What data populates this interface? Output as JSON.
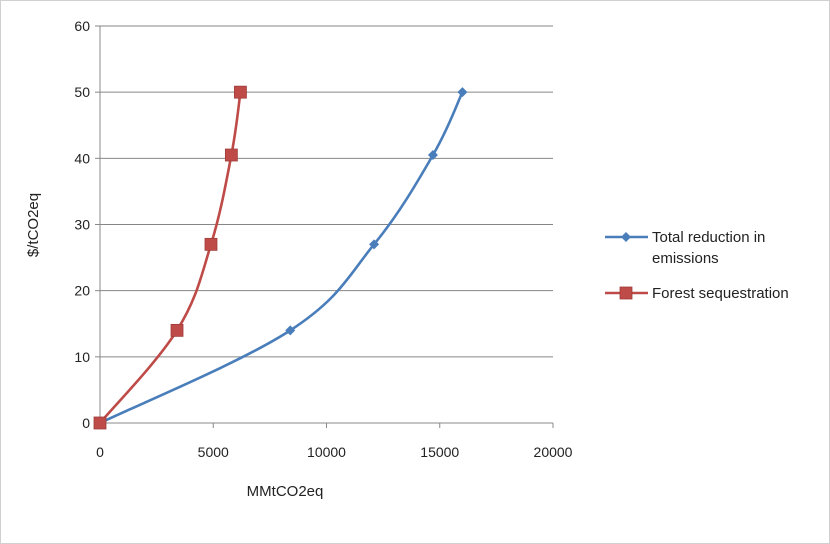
{
  "chart_data": {
    "type": "line",
    "title": "",
    "xlabel": "MMtCO2eq",
    "ylabel": "$/tCO2eq",
    "xlim": [
      0,
      20000
    ],
    "ylim": [
      0,
      60
    ],
    "x_ticks": [
      "0",
      "5000",
      "10000",
      "15000",
      "20000"
    ],
    "y_ticks": [
      "0",
      "10",
      "20",
      "30",
      "40",
      "50",
      "60"
    ],
    "grid": "horizontal",
    "legend_position": "right",
    "series": [
      {
        "name": "Total reduction in emissions",
        "name_lines": [
          "Total reduction in",
          "emissions"
        ],
        "color": "#4a7ebb",
        "marker": "diamond",
        "points": [
          [
            0,
            0
          ],
          [
            8400,
            14
          ],
          [
            12100,
            27
          ],
          [
            14700,
            40.5
          ],
          [
            16000,
            50
          ]
        ]
      },
      {
        "name": "Forest sequestration",
        "name_lines": [
          "Forest sequestration"
        ],
        "color": "#be4b48",
        "marker": "square",
        "points": [
          [
            0,
            0
          ],
          [
            3400,
            14
          ],
          [
            4900,
            27
          ],
          [
            5800,
            40.5
          ],
          [
            6200,
            50
          ]
        ]
      }
    ]
  }
}
